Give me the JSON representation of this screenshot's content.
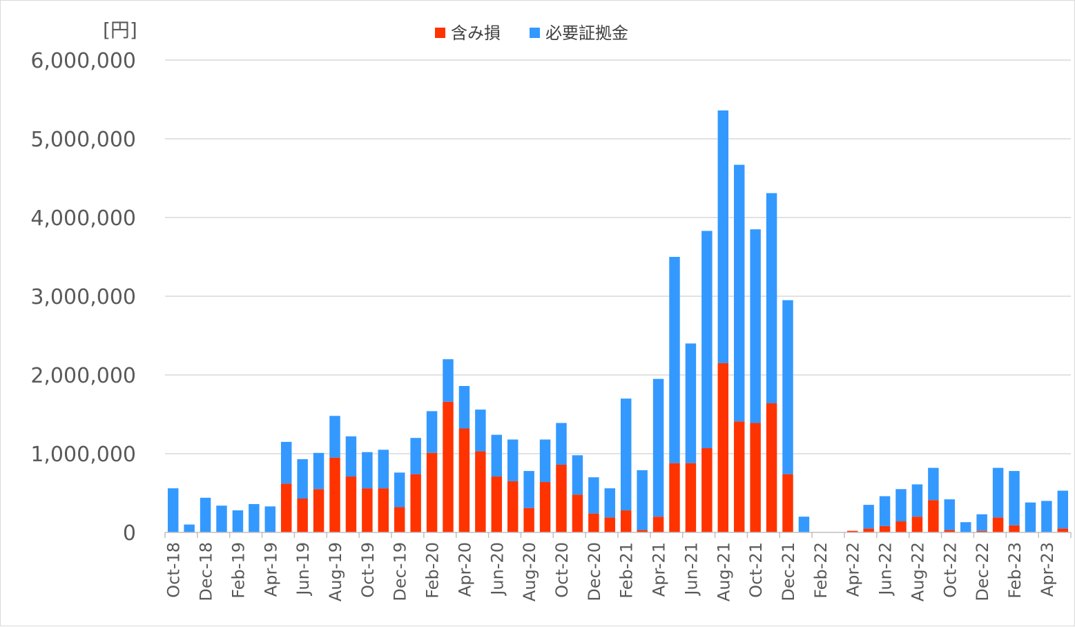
{
  "chart_data": {
    "type": "bar",
    "stacked": true,
    "title": "",
    "y_unit_label": "[円]",
    "ylim": [
      0,
      6000000
    ],
    "y_ticks": [
      0,
      1000000,
      2000000,
      3000000,
      4000000,
      5000000,
      6000000
    ],
    "y_tick_labels": [
      "0",
      "1,000,000",
      "2,000,000",
      "3,000,000",
      "4,000,000",
      "5,000,000",
      "6,000,000"
    ],
    "grid": true,
    "legend_position": "top-center",
    "x_tick_labels": [
      "Oct-18",
      "Dec-18",
      "Feb-19",
      "Apr-19",
      "Jun-19",
      "Aug-19",
      "Oct-19",
      "Dec-19",
      "Feb-20",
      "Apr-20",
      "Jun-20",
      "Aug-20",
      "Oct-20",
      "Dec-20",
      "Feb-21",
      "Apr-21",
      "Jun-21",
      "Aug-21",
      "Oct-21",
      "Dec-21",
      "Feb-22",
      "Apr-22",
      "Jun-22",
      "Aug-22",
      "Oct-22",
      "Dec-22",
      "Feb-23",
      "Apr-23"
    ],
    "categories": [
      "Oct-18",
      "Nov-18",
      "Dec-18",
      "Jan-19",
      "Feb-19",
      "Mar-19",
      "Apr-19",
      "May-19",
      "Jun-19",
      "Jul-19",
      "Aug-19",
      "Sep-19",
      "Oct-19",
      "Nov-19",
      "Dec-19",
      "Jan-20",
      "Feb-20",
      "Mar-20",
      "Apr-20",
      "May-20",
      "Jun-20",
      "Jul-20",
      "Aug-20",
      "Sep-20",
      "Oct-20",
      "Nov-20",
      "Dec-20",
      "Jan-21",
      "Feb-21",
      "Mar-21",
      "Apr-21",
      "May-21",
      "Jun-21",
      "Jul-21",
      "Aug-21",
      "Sep-21",
      "Oct-21",
      "Nov-21",
      "Dec-21",
      "Jan-22",
      "Feb-22",
      "Mar-22",
      "Apr-22",
      "May-22",
      "Jun-22",
      "Jul-22",
      "Aug-22",
      "Sep-22",
      "Oct-22",
      "Nov-22",
      "Dec-22",
      "Jan-23",
      "Feb-23",
      "Mar-23",
      "Apr-23",
      "May-23"
    ],
    "series": [
      {
        "name": "含み損",
        "color": "#ff3300",
        "values": [
          0,
          0,
          0,
          0,
          0,
          0,
          0,
          620000,
          430000,
          550000,
          950000,
          710000,
          560000,
          560000,
          320000,
          740000,
          1010000,
          1660000,
          1320000,
          1030000,
          710000,
          650000,
          310000,
          640000,
          860000,
          480000,
          240000,
          190000,
          280000,
          30000,
          200000,
          880000,
          880000,
          1070000,
          2150000,
          1410000,
          1390000,
          1640000,
          740000,
          0,
          0,
          0,
          20000,
          50000,
          80000,
          140000,
          200000,
          410000,
          30000,
          0,
          20000,
          190000,
          90000,
          0,
          0,
          50000
        ]
      },
      {
        "name": "必要証拠金",
        "color": "#3399ff",
        "values": [
          560000,
          100000,
          440000,
          340000,
          280000,
          360000,
          330000,
          530000,
          500000,
          460000,
          530000,
          510000,
          460000,
          490000,
          440000,
          460000,
          530000,
          540000,
          540000,
          530000,
          530000,
          530000,
          470000,
          540000,
          530000,
          500000,
          460000,
          370000,
          1420000,
          760000,
          1750000,
          2620000,
          1520000,
          2760000,
          3210000,
          3260000,
          2460000,
          2670000,
          2210000,
          200000,
          0,
          0,
          0,
          300000,
          380000,
          410000,
          410000,
          410000,
          390000,
          130000,
          210000,
          630000,
          690000,
          380000,
          400000,
          480000
        ]
      }
    ]
  }
}
